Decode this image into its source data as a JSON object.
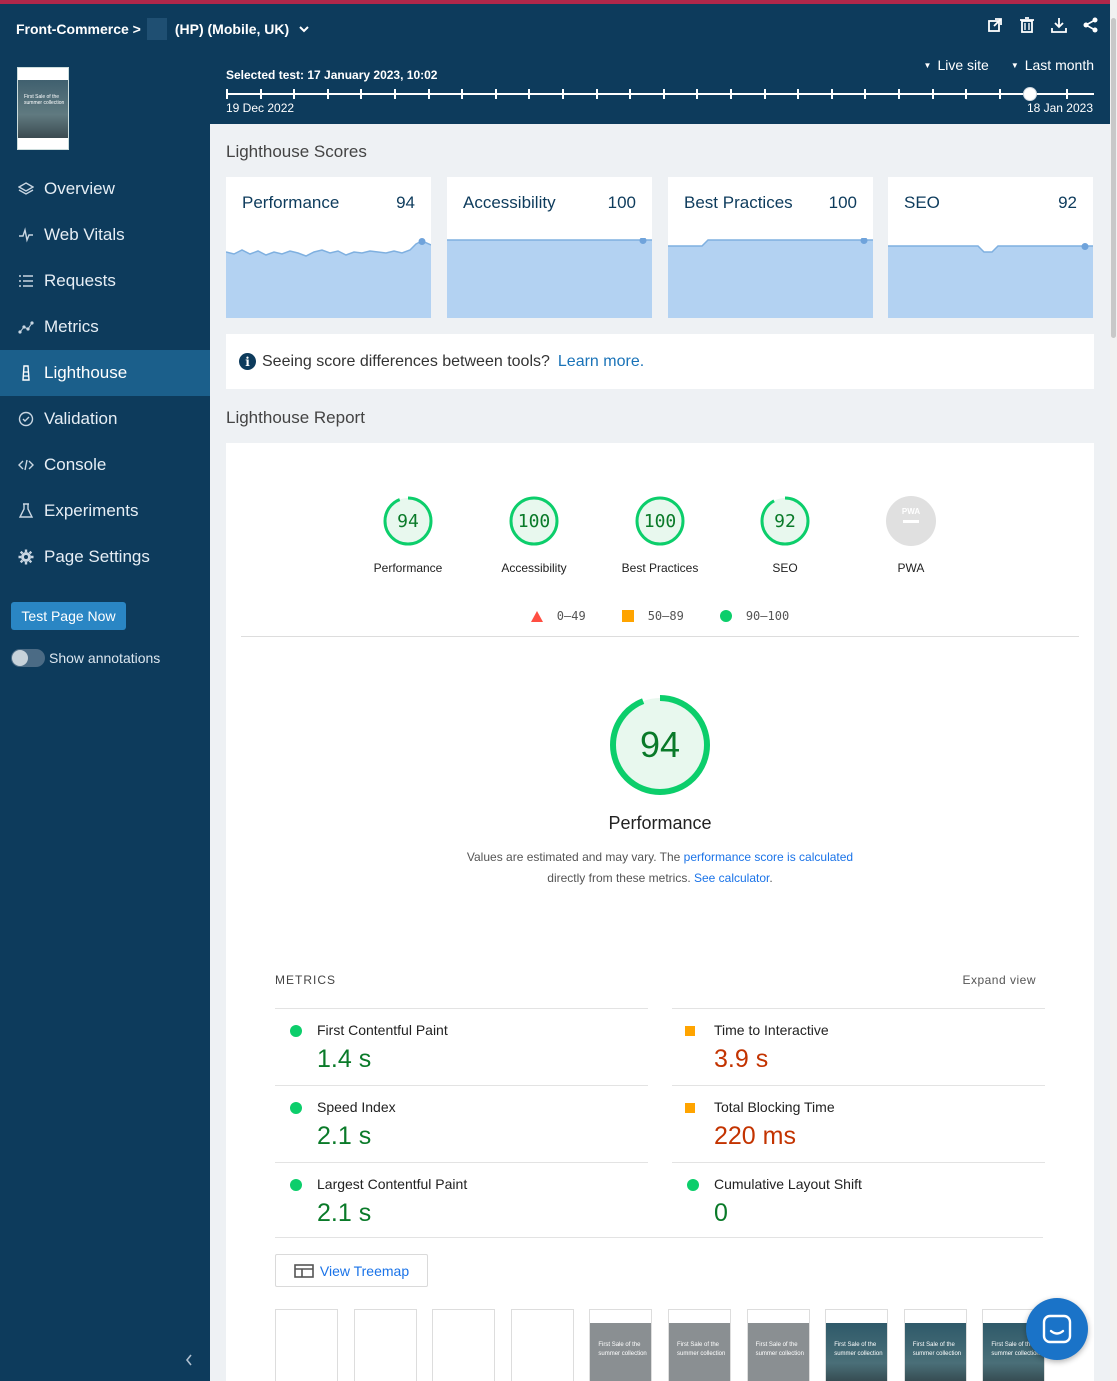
{
  "header": {
    "breadcrumb_root": "Front-Commerce >",
    "breadcrumb_page": "(HP) (Mobile, UK)",
    "icons": [
      "external-link-icon",
      "trash-icon",
      "download-icon",
      "share-icon"
    ]
  },
  "timeline": {
    "selected_test": "Selected test: 17 January 2023, 10:02",
    "filter_site": "Live site",
    "filter_range": "Last month",
    "start_label": "19 Dec 2022",
    "end_label": "18 Jan 2023"
  },
  "sidebar": {
    "thumbnail_text": "First Sale of the summer collection",
    "items": [
      {
        "label": "Overview",
        "icon": "layers-icon"
      },
      {
        "label": "Web Vitals",
        "icon": "pulse-icon"
      },
      {
        "label": "Requests",
        "icon": "list-icon"
      },
      {
        "label": "Metrics",
        "icon": "scatter-icon"
      },
      {
        "label": "Lighthouse",
        "icon": "lighthouse-icon"
      },
      {
        "label": "Validation",
        "icon": "check-circle-icon"
      },
      {
        "label": "Console",
        "icon": "code-icon"
      },
      {
        "label": "Experiments",
        "icon": "flask-icon"
      },
      {
        "label": "Page Settings",
        "icon": "gear-icon"
      }
    ],
    "test_button": "Test Page Now",
    "annotations_label": "Show annotations"
  },
  "scores_section": {
    "title": "Lighthouse Scores",
    "cards": [
      {
        "name": "Performance",
        "value": "94"
      },
      {
        "name": "Accessibility",
        "value": "100"
      },
      {
        "name": "Best Practices",
        "value": "100"
      },
      {
        "name": "SEO",
        "value": "92"
      }
    ]
  },
  "info": {
    "text": "Seeing score differences between tools?",
    "link": "Learn more."
  },
  "report": {
    "title": "Lighthouse Report",
    "gauges": [
      {
        "label": "Performance",
        "value": "94"
      },
      {
        "label": "Accessibility",
        "value": "100"
      },
      {
        "label": "Best Practices",
        "value": "100"
      },
      {
        "label": "SEO",
        "value": "92"
      },
      {
        "label": "PWA",
        "value": "PWA"
      }
    ],
    "legend": [
      "0–49",
      "50–89",
      "90–100"
    ],
    "perf_score": "94",
    "perf_title": "Performance",
    "desc_1": "Values are estimated and may vary. The ",
    "desc_link_1": "performance score is calculated",
    "desc_2": "directly from these metrics. ",
    "desc_link_2": "See calculator",
    "desc_end": ".",
    "metrics_header": "METRICS",
    "expand_label": "Expand view",
    "metrics": [
      {
        "name": "First Contentful Paint",
        "value": "1.4 s",
        "rating": "good"
      },
      {
        "name": "Time to Interactive",
        "value": "3.9 s",
        "rating": "average"
      },
      {
        "name": "Speed Index",
        "value": "2.1 s",
        "rating": "good"
      },
      {
        "name": "Total Blocking Time",
        "value": "220 ms",
        "rating": "average"
      },
      {
        "name": "Largest Contentful Paint",
        "value": "2.1 s",
        "rating": "good"
      },
      {
        "name": "Cumulative Layout Shift",
        "value": "0",
        "rating": "good"
      }
    ],
    "treemap_button": "View Treemap",
    "filmstrip_text": "First Sale of the summer collection"
  },
  "colors": {
    "brand": "#0d3b5c",
    "active_nav": "#1b5f8b",
    "good": "#0cce6b",
    "average": "#ffa400",
    "poor": "#ff4e42",
    "link": "#1a73e8"
  }
}
